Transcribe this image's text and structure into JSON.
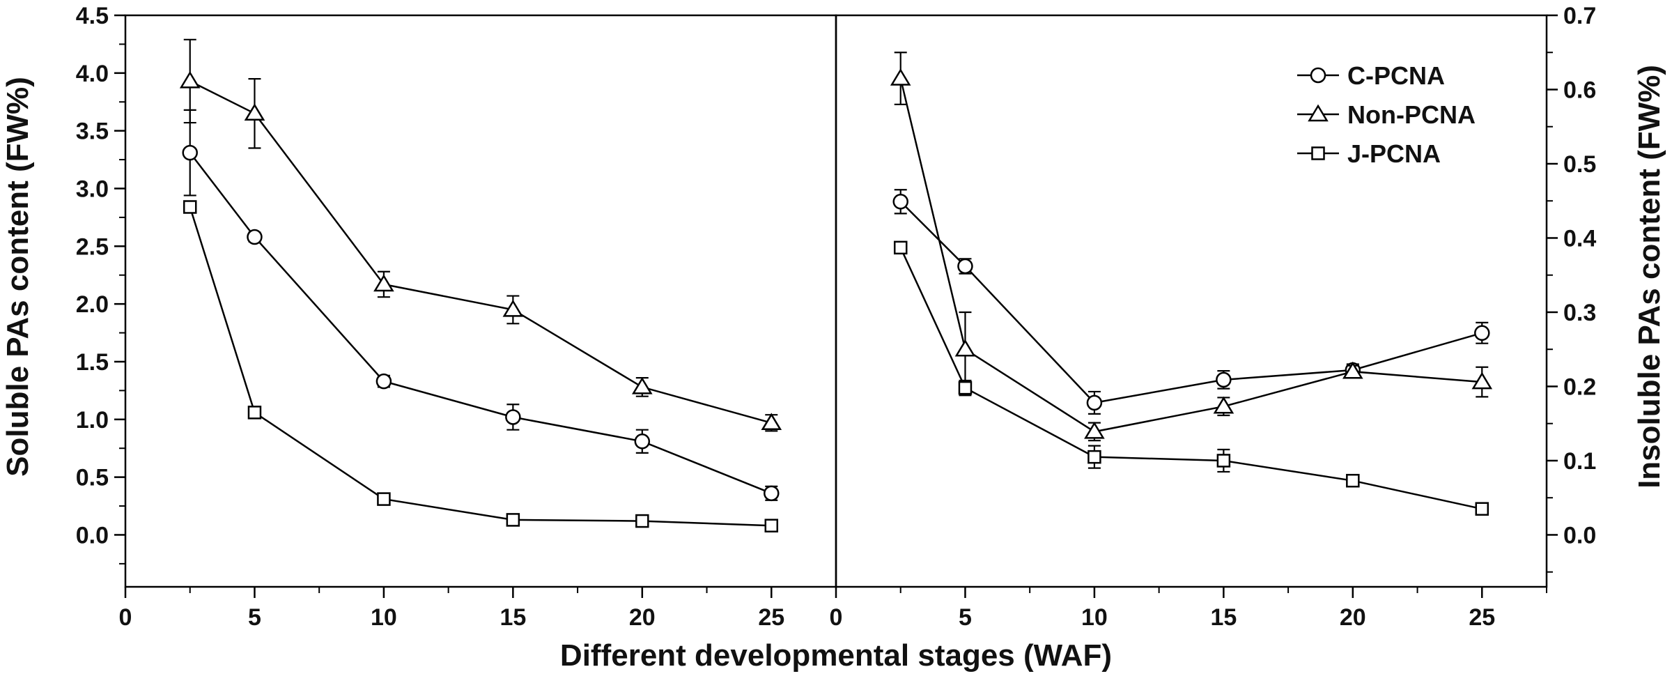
{
  "chart_data": {
    "type": "line",
    "xlabel": "Different developmental stages (WAF)",
    "panels": [
      {
        "name": "soluble",
        "ylabel": "Soluble PAs content (FW%)",
        "xlim": [
          0,
          27.5
        ],
        "ylim": [
          -0.45,
          4.5
        ],
        "xticks": [
          0,
          5,
          10,
          15,
          20,
          25
        ],
        "xtick_labels": [
          "0",
          "5",
          "10",
          "15",
          "20",
          "25"
        ],
        "yticks": [
          0,
          0.5,
          1,
          1.5,
          2,
          2.5,
          3,
          3.5,
          4,
          4.5
        ],
        "ytick_labels": [
          "0.0",
          "0.5",
          "1.0",
          "1.5",
          "2.0",
          "2.5",
          "3.0",
          "3.5",
          "4.0",
          "4.5"
        ],
        "x": [
          2.5,
          5,
          10,
          15,
          20,
          25
        ],
        "series": [
          {
            "name": "C-PCNA",
            "marker": "circle",
            "values": [
              3.31,
              2.58,
              1.33,
              1.02,
              0.81,
              0.36
            ],
            "errors": [
              0.37,
              0.04,
              0.05,
              0.11,
              0.1,
              0.06
            ]
          },
          {
            "name": "Non-PCNA",
            "marker": "triangle",
            "values": [
              3.93,
              3.65,
              2.17,
              1.95,
              1.28,
              0.97
            ],
            "errors": [
              0.36,
              0.3,
              0.11,
              0.12,
              0.08,
              0.07
            ]
          },
          {
            "name": "J-PCNA",
            "marker": "square",
            "values": [
              2.84,
              1.06,
              0.31,
              0.13,
              0.12,
              0.08
            ],
            "errors": [
              0.05,
              0.04,
              0.04,
              0.04,
              0.03,
              0.04
            ]
          }
        ]
      },
      {
        "name": "insoluble",
        "ylabel": "Insoluble PAs content (FW%)",
        "xlim": [
          0,
          27.5
        ],
        "ylim": [
          -0.07,
          0.7
        ],
        "xticks": [
          0,
          5,
          10,
          15,
          20,
          25
        ],
        "xtick_labels": [
          "0",
          "5",
          "10",
          "15",
          "20",
          "25"
        ],
        "yticks": [
          0,
          0.1,
          0.2,
          0.3,
          0.4,
          0.5,
          0.6,
          0.7
        ],
        "ytick_labels": [
          "0.0",
          "0.1",
          "0.2",
          "0.3",
          "0.4",
          "0.5",
          "0.6",
          "0.7"
        ],
        "x": [
          2.5,
          5,
          10,
          15,
          20,
          25
        ],
        "series": [
          {
            "name": "C-PCNA",
            "marker": "circle",
            "values": [
              0.449,
              0.362,
              0.178,
              0.209,
              0.222,
              0.272
            ],
            "errors": [
              0.016,
              0.01,
              0.015,
              0.012,
              0.008,
              0.014
            ]
          },
          {
            "name": "Non-PCNA",
            "marker": "triangle",
            "values": [
              0.615,
              0.25,
              0.139,
              0.173,
              0.22,
              0.206
            ],
            "errors": [
              0.035,
              0.05,
              0.012,
              0.012,
              0.008,
              0.02
            ]
          },
          {
            "name": "J-PCNA",
            "marker": "square",
            "values": [
              0.387,
              0.198,
              0.105,
              0.1,
              0.073,
              0.035
            ],
            "errors": [
              0.005,
              0.01,
              0.015,
              0.015,
              0.006,
              0.004
            ]
          }
        ]
      }
    ],
    "legend": {
      "position": "top-right",
      "entries": [
        {
          "label": "C-PCNA",
          "marker": "circle"
        },
        {
          "label": "Non-PCNA",
          "marker": "triangle"
        },
        {
          "label": "J-PCNA",
          "marker": "square"
        }
      ]
    }
  }
}
